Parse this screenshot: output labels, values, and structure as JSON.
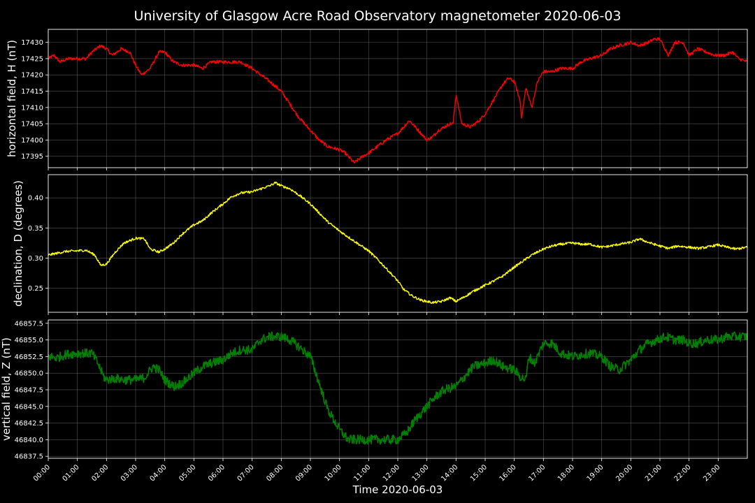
{
  "chart_data": {
    "type": "line",
    "title": "University of Glasgow Acre Road Observatory magnetometer 2020-06-03",
    "xlabel": "Time 2020-06-03",
    "x_ticks": [
      "00:00",
      "01:00",
      "02:00",
      "03:00",
      "04:00",
      "05:00",
      "06:00",
      "07:00",
      "08:00",
      "09:00",
      "10:00",
      "11:00",
      "12:00",
      "13:00",
      "14:00",
      "15:00",
      "16:00",
      "17:00",
      "18:00",
      "19:00",
      "20:00",
      "21:00",
      "22:00",
      "23:00"
    ],
    "xlim_hours": [
      0,
      24
    ],
    "grid": true,
    "background": "#000000",
    "panels": [
      {
        "name": "H",
        "ylabel": "horizontal field, H (nT)",
        "color": "#ff0000",
        "ylim": [
          17391.5,
          17434
        ],
        "y_ticks": [
          17395,
          17400,
          17405,
          17410,
          17415,
          17420,
          17425,
          17430
        ],
        "y_tick_labels": [
          "17395",
          "17400",
          "17405",
          "17410",
          "17415",
          "17420",
          "17425",
          "17430"
        ],
        "noise": 0.5,
        "x": [
          0,
          0.2,
          0.4,
          0.7,
          1.0,
          1.3,
          1.5,
          1.8,
          2.0,
          2.2,
          2.5,
          2.8,
          3.0,
          3.2,
          3.5,
          3.8,
          4.0,
          4.3,
          4.6,
          5.0,
          5.3,
          5.6,
          6.0,
          6.3,
          6.6,
          7.0,
          7.3,
          7.6,
          8.0,
          8.3,
          8.6,
          9.0,
          9.3,
          9.6,
          10.0,
          10.2,
          10.5,
          10.8,
          11.0,
          11.3,
          11.6,
          12.0,
          12.2,
          12.4,
          12.6,
          12.8,
          13.0,
          13.2,
          13.4,
          13.6,
          13.8,
          13.9,
          14.0,
          14.2,
          14.5,
          14.8,
          15.0,
          15.2,
          15.4,
          15.6,
          15.8,
          16.0,
          16.2,
          16.25,
          16.4,
          16.5,
          16.6,
          16.8,
          17.0,
          17.3,
          17.6,
          18.0,
          18.3,
          18.6,
          19.0,
          19.3,
          19.6,
          20.0,
          20.3,
          20.6,
          20.8,
          21.0,
          21.3,
          21.5,
          21.8,
          22.0,
          22.3,
          22.6,
          22.9,
          23.2,
          23.5,
          23.7,
          24.0
        ],
        "y": [
          17425,
          17426,
          17424,
          17425,
          17425,
          17425,
          17427,
          17429,
          17428,
          17426,
          17428,
          17427,
          17423,
          17420,
          17422,
          17427,
          17427,
          17424,
          17423,
          17423,
          17422,
          17424,
          17424,
          17424,
          17424,
          17422,
          17420,
          17418,
          17415,
          17411,
          17407,
          17403,
          17400,
          17398,
          17397,
          17396,
          17393,
          17395,
          17396,
          17398,
          17400,
          17402,
          17404,
          17406,
          17404,
          17402,
          17400,
          17401,
          17403,
          17404,
          17405,
          17405,
          17414,
          17405,
          17404,
          17406,
          17408,
          17411,
          17414,
          17417,
          17419,
          17418,
          17412,
          17407,
          17416,
          17413,
          17410,
          17418,
          17421,
          17421,
          17422,
          17422,
          17424,
          17425,
          17426,
          17428,
          17429,
          17430,
          17429,
          17430,
          17431,
          17431,
          17426,
          17430,
          17430,
          17426,
          17428,
          17427,
          17426,
          17426,
          17427,
          17425,
          17424
        ]
      },
      {
        "name": "D",
        "ylabel": "declination, D (degrees)",
        "color": "#ffff00",
        "ylim": [
          0.21,
          0.4385
        ],
        "y_ticks": [
          0.25,
          0.3,
          0.35,
          0.4
        ],
        "y_tick_labels": [
          "0.25",
          "0.30",
          "0.35",
          "0.40"
        ],
        "noise": 0.002,
        "x": [
          0,
          0.3,
          0.6,
          1.0,
          1.3,
          1.6,
          1.8,
          2.0,
          2.3,
          2.6,
          3.0,
          3.3,
          3.5,
          3.8,
          4.0,
          4.3,
          4.6,
          5.0,
          5.3,
          5.6,
          6.0,
          6.3,
          6.6,
          7.0,
          7.3,
          7.6,
          7.8,
          8.0,
          8.3,
          8.6,
          9.0,
          9.3,
          9.6,
          10.0,
          10.3,
          10.6,
          11.0,
          11.3,
          11.6,
          12.0,
          12.2,
          12.5,
          12.8,
          13.0,
          13.2,
          13.5,
          13.8,
          14.0,
          14.3,
          14.6,
          15.0,
          15.3,
          15.6,
          16.0,
          16.3,
          16.6,
          17.0,
          17.3,
          17.6,
          18.0,
          18.3,
          18.6,
          19.0,
          19.3,
          19.6,
          20.0,
          20.3,
          20.6,
          21.0,
          21.3,
          21.6,
          22.0,
          22.3,
          22.6,
          23.0,
          23.3,
          23.6,
          24.0
        ],
        "y": [
          0.305,
          0.308,
          0.311,
          0.312,
          0.313,
          0.305,
          0.288,
          0.29,
          0.31,
          0.325,
          0.333,
          0.332,
          0.315,
          0.31,
          0.315,
          0.325,
          0.34,
          0.355,
          0.362,
          0.375,
          0.39,
          0.402,
          0.408,
          0.41,
          0.415,
          0.42,
          0.425,
          0.42,
          0.415,
          0.405,
          0.39,
          0.375,
          0.36,
          0.345,
          0.335,
          0.325,
          0.312,
          0.298,
          0.283,
          0.262,
          0.248,
          0.237,
          0.23,
          0.228,
          0.226,
          0.228,
          0.234,
          0.228,
          0.236,
          0.245,
          0.255,
          0.262,
          0.27,
          0.285,
          0.295,
          0.305,
          0.315,
          0.32,
          0.323,
          0.325,
          0.323,
          0.323,
          0.318,
          0.32,
          0.323,
          0.326,
          0.332,
          0.326,
          0.32,
          0.316,
          0.32,
          0.318,
          0.316,
          0.318,
          0.322,
          0.318,
          0.315,
          0.318
        ]
      },
      {
        "name": "Z",
        "ylabel": "vertical field, Z (nT)",
        "color": "#008000",
        "ylim": [
          46837.2,
          46858
        ],
        "y_ticks": [
          46837.5,
          46840.0,
          46842.5,
          46845.0,
          46847.5,
          46850.0,
          46852.5,
          46855.0,
          46857.5
        ],
        "y_tick_labels": [
          "46837.5",
          "46840.0",
          "46842.5",
          "46845.0",
          "46847.5",
          "46850.0",
          "46852.5",
          "46855.0",
          "46857.5"
        ],
        "noise": 0.7,
        "x": [
          0,
          0.3,
          0.6,
          1.0,
          1.3,
          1.5,
          1.7,
          1.9,
          2.0,
          2.3,
          2.6,
          3.0,
          3.3,
          3.6,
          3.8,
          4.0,
          4.3,
          4.6,
          5.0,
          5.3,
          5.6,
          6.0,
          6.3,
          6.6,
          7.0,
          7.3,
          7.6,
          8.0,
          8.3,
          8.6,
          9.0,
          9.3,
          9.6,
          10.0,
          10.3,
          10.6,
          11.0,
          11.3,
          11.6,
          12.0,
          12.3,
          12.6,
          13.0,
          13.3,
          13.6,
          14.0,
          14.3,
          14.6,
          15.0,
          15.3,
          15.6,
          16.0,
          16.2,
          16.4,
          16.5,
          16.7,
          17.0,
          17.3,
          17.6,
          18.0,
          18.3,
          18.6,
          19.0,
          19.3,
          19.6,
          20.0,
          20.3,
          20.6,
          20.9,
          21.2,
          21.5,
          21.8,
          22.0,
          22.3,
          22.6,
          23.0,
          23.3,
          23.6,
          24.0
        ],
        "y": [
          46852.5,
          46852.3,
          46852.8,
          46853.0,
          46853.0,
          46853.0,
          46851.5,
          46849.5,
          46849.0,
          46849.2,
          46849.0,
          46849.0,
          46849.3,
          46851.0,
          46850.5,
          46849.0,
          46848.0,
          46848.5,
          46850.0,
          46851.0,
          46851.5,
          46852.0,
          46853.0,
          46853.5,
          46853.5,
          46855.0,
          46855.5,
          46855.5,
          46855.0,
          46854.0,
          46852.5,
          46848.5,
          46844.5,
          46841.5,
          46840.0,
          46840.0,
          46840.0,
          46840.0,
          46840.0,
          46840.0,
          46841.0,
          46843.0,
          46845.0,
          46846.5,
          46847.5,
          46848.0,
          46849.5,
          46851.0,
          46851.5,
          46852.0,
          46851.0,
          46850.5,
          46849.5,
          46849.0,
          46852.5,
          46851.5,
          46854.5,
          46854.5,
          46853.0,
          46852.5,
          46852.8,
          46853.0,
          46852.5,
          46851.0,
          46850.5,
          46852.0,
          46853.5,
          46854.5,
          46855.0,
          46855.5,
          46855.0,
          46855.0,
          46854.5,
          46854.5,
          46855.0,
          46855.0,
          46855.5,
          46855.5,
          46855.5
        ]
      }
    ]
  }
}
